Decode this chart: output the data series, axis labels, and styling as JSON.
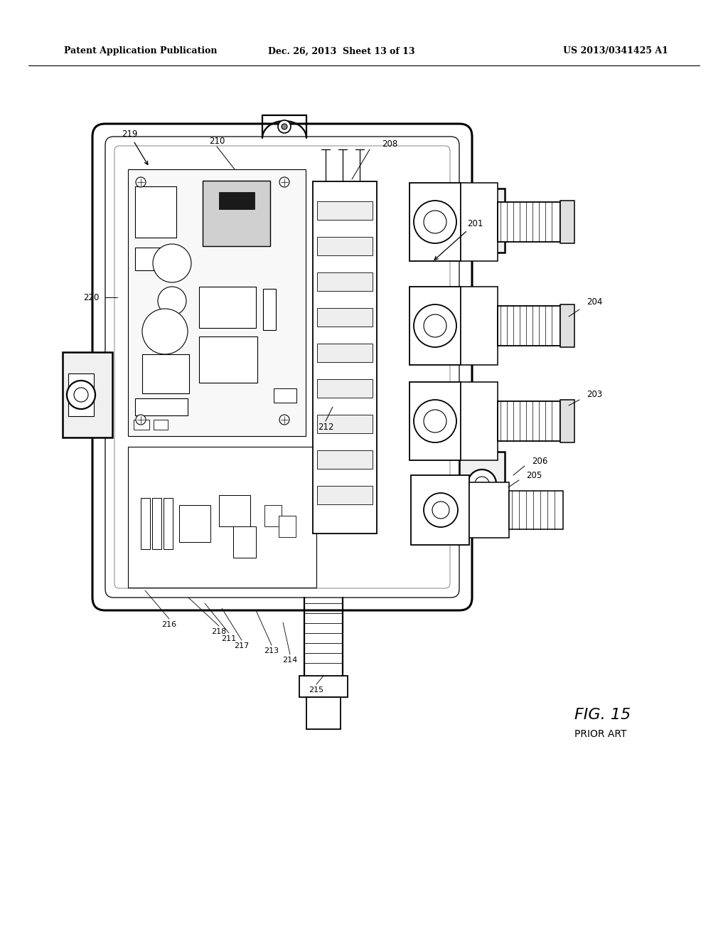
{
  "bg_color": "#ffffff",
  "header_left": "Patent Application Publication",
  "header_center": "Dec. 26, 2013  Sheet 13 of 13",
  "header_right": "US 2013/0341425 A1",
  "fig_label": "FIG. 15",
  "fig_sublabel": "PRIOR ART",
  "line_color": "#000000",
  "text_color": "#000000",
  "ref_fontsize": 8.5,
  "header_fontsize": 9.0,
  "fig_fontsize": 16
}
